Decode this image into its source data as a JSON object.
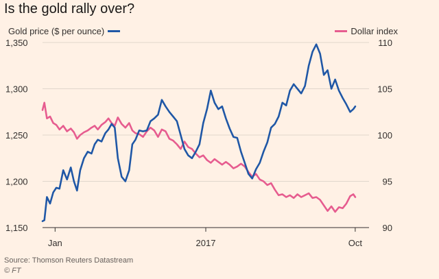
{
  "colors": {
    "background": "#FFF1E5",
    "gold": "#1F57A6",
    "dollar": "#E65C8F",
    "grid": "#E0D6CC",
    "axis": "#33302E"
  },
  "chart_data": {
    "type": "line",
    "title": "Is the gold rally over?",
    "source": "Source: Thomson Reuters Datastream",
    "credit": "© FT",
    "x_range": [
      0,
      52
    ],
    "x_ticks": [
      {
        "x": 2,
        "label": "Jan"
      },
      {
        "x": 26,
        "label": "2017"
      },
      {
        "x": 49.8,
        "label": "Oct"
      }
    ],
    "y_left": {
      "label": "Gold price ($ per ounce)",
      "range": [
        1150,
        1350
      ],
      "ticks": [
        1150,
        1200,
        1250,
        1300,
        1350
      ],
      "tick_labels": [
        "1,150",
        "1,200",
        "1,250",
        "1,300",
        "1,350"
      ]
    },
    "y_right": {
      "label": "Dollar index",
      "range": [
        90,
        110
      ],
      "ticks": [
        90,
        95,
        100,
        105,
        110
      ],
      "tick_labels": [
        "90",
        "95",
        "100",
        "105",
        "110"
      ]
    },
    "series": [
      {
        "name": "Gold price ($ per ounce)",
        "axis": "left",
        "x": [
          0,
          0.3,
          0.7,
          1.2,
          1.7,
          2.2,
          2.7,
          3.3,
          3.9,
          4.5,
          5.0,
          5.5,
          6.0,
          6.6,
          7.2,
          7.8,
          8.3,
          8.8,
          9.4,
          10.0,
          10.5,
          11.0,
          11.5,
          12.0,
          12.6,
          13.2,
          13.8,
          14.3,
          14.8,
          15.4,
          16.0,
          16.6,
          17.2,
          17.8,
          18.4,
          19.0,
          19.6,
          20.2,
          20.8,
          21.4,
          22.0,
          22.6,
          23.2,
          23.8,
          24.4,
          25.0,
          25.6,
          26.2,
          26.8,
          27.4,
          28.0,
          28.6,
          29.2,
          29.8,
          30.4,
          31.0,
          31.6,
          32.2,
          32.8,
          33.4,
          34.0,
          34.6,
          35.2,
          35.8,
          36.4,
          37.0,
          37.6,
          38.2,
          38.8,
          39.4,
          40.0,
          40.6,
          41.2,
          41.8,
          42.4,
          43.0,
          43.6,
          44.2,
          44.8,
          45.4,
          46.0,
          46.6,
          47.2,
          47.8,
          48.4,
          49.0,
          49.5,
          49.8
        ],
        "values": [
          1157,
          1158,
          1183,
          1176,
          1188,
          1193,
          1192,
          1212,
          1202,
          1215,
          1200,
          1190,
          1212,
          1225,
          1232,
          1230,
          1240,
          1245,
          1243,
          1252,
          1256,
          1262,
          1258,
          1225,
          1205,
          1200,
          1212,
          1240,
          1245,
          1255,
          1254,
          1255,
          1265,
          1268,
          1272,
          1288,
          1281,
          1275,
          1270,
          1265,
          1250,
          1235,
          1228,
          1225,
          1232,
          1240,
          1263,
          1278,
          1298,
          1285,
          1278,
          1281,
          1268,
          1257,
          1248,
          1247,
          1232,
          1220,
          1208,
          1203,
          1213,
          1220,
          1232,
          1242,
          1258,
          1262,
          1270,
          1285,
          1282,
          1298,
          1305,
          1300,
          1295,
          1303,
          1325,
          1340,
          1348,
          1338,
          1315,
          1320,
          1300,
          1310,
          1298,
          1290,
          1283,
          1275,
          1278,
          1281
        ]
      },
      {
        "name": "Dollar index",
        "axis": "right",
        "x": [
          0,
          0.3,
          0.7,
          1.2,
          1.7,
          2.2,
          2.7,
          3.3,
          3.9,
          4.5,
          5.0,
          5.5,
          6.0,
          6.6,
          7.2,
          7.8,
          8.3,
          8.8,
          9.4,
          10.0,
          10.5,
          11.0,
          11.5,
          12.0,
          12.6,
          13.2,
          13.8,
          14.3,
          14.8,
          15.4,
          16.0,
          16.6,
          17.2,
          17.8,
          18.4,
          19.0,
          19.6,
          20.2,
          20.8,
          21.4,
          22.0,
          22.6,
          23.2,
          23.8,
          24.4,
          25.0,
          25.6,
          26.2,
          26.8,
          27.4,
          28.0,
          28.6,
          29.2,
          29.8,
          30.4,
          31.0,
          31.6,
          32.2,
          32.8,
          33.4,
          34.0,
          34.6,
          35.2,
          35.8,
          36.4,
          37.0,
          37.6,
          38.2,
          38.8,
          39.4,
          40.0,
          40.6,
          41.2,
          41.8,
          42.4,
          43.0,
          43.6,
          44.2,
          44.8,
          45.4,
          46.0,
          46.6,
          47.2,
          47.8,
          48.4,
          49.0,
          49.5,
          49.8
        ],
        "values": [
          102.7,
          103.5,
          101.8,
          102.0,
          101.3,
          101.1,
          100.6,
          101.0,
          100.4,
          100.7,
          100.3,
          99.6,
          100.0,
          100.3,
          100.5,
          100.8,
          101.0,
          100.6,
          101.1,
          101.4,
          101.8,
          101.3,
          101.0,
          101.9,
          101.2,
          100.8,
          101.3,
          100.5,
          100.2,
          100.1,
          99.8,
          100.4,
          100.8,
          100.5,
          99.8,
          100.6,
          100.4,
          99.6,
          99.4,
          99.0,
          98.5,
          99.3,
          98.7,
          98.5,
          98.0,
          97.6,
          97.8,
          97.3,
          97.0,
          97.4,
          97.1,
          96.8,
          97.1,
          96.8,
          96.4,
          96.6,
          96.9,
          96.6,
          96.0,
          95.5,
          95.8,
          95.2,
          95.0,
          94.6,
          94.8,
          94.1,
          93.5,
          93.6,
          93.3,
          93.5,
          93.2,
          93.6,
          93.3,
          93.5,
          93.7,
          93.2,
          93.3,
          93.0,
          92.4,
          91.8,
          92.3,
          91.7,
          92.2,
          92.1,
          92.6,
          93.4,
          93.6,
          93.3
        ]
      }
    ]
  }
}
